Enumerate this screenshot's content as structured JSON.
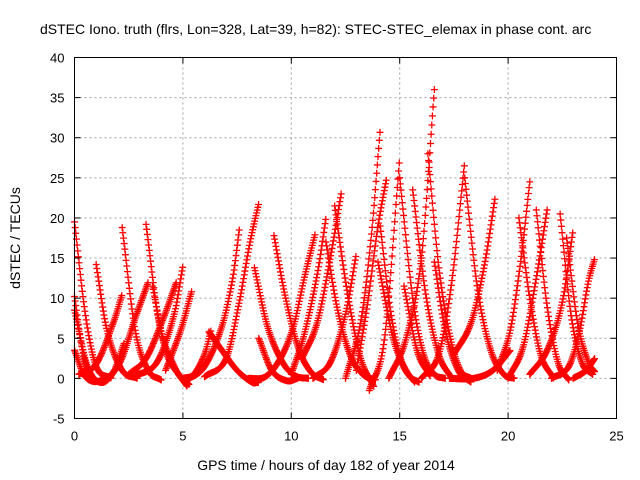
{
  "chart_data": {
    "type": "scatter",
    "title": "dSTEC Iono. truth (flrs, Lon=328, Lat=39, h=82): STEC-STEC_elemax in phase cont. arc",
    "xlabel": "GPS time / hours of day 182 of year 2014",
    "ylabel": "dSTEC  / TECUs",
    "xlim": [
      0,
      25
    ],
    "ylim": [
      -5,
      40
    ],
    "xticks": [
      0,
      5,
      10,
      15,
      20,
      25
    ],
    "yticks": [
      -5,
      0,
      5,
      10,
      15,
      20,
      25,
      30,
      35,
      40
    ],
    "grid": true,
    "marker": "plus",
    "color": "#ff0000",
    "arcs": [
      {
        "x": [
          0.0,
          0.5,
          1.0,
          1.7
        ],
        "y": [
          19.5,
          8.0,
          1.5,
          0.0
        ]
      },
      {
        "x": [
          0.0,
          0.4,
          0.8
        ],
        "y": [
          10.2,
          3.0,
          0.0
        ]
      },
      {
        "x": [
          0.0,
          0.6,
          1.2,
          1.8,
          2.3
        ],
        "y": [
          8.5,
          1.5,
          -0.5,
          0.8,
          4.5
        ]
      },
      {
        "x": [
          0.0,
          0.5,
          1.3,
          2.1,
          2.8,
          3.4
        ],
        "y": [
          3.5,
          0.2,
          -0.2,
          2.0,
          7.5,
          12.0
        ]
      },
      {
        "x": [
          0.2,
          1.0,
          1.8,
          2.2
        ],
        "y": [
          0.5,
          1.8,
          7.0,
          10.5
        ]
      },
      {
        "x": [
          1.0,
          1.5,
          2.2,
          2.9
        ],
        "y": [
          14.2,
          6.0,
          1.0,
          0.0
        ]
      },
      {
        "x": [
          2.2,
          2.8,
          3.4,
          4.0
        ],
        "y": [
          18.8,
          6.0,
          1.0,
          -0.2
        ]
      },
      {
        "x": [
          2.5,
          3.3,
          4.1,
          4.7
        ],
        "y": [
          0.5,
          2.5,
          7.5,
          12.0
        ]
      },
      {
        "x": [
          3.3,
          3.9,
          4.6,
          5.2
        ],
        "y": [
          19.2,
          7.0,
          1.5,
          -1.0
        ]
      },
      {
        "x": [
          3.6,
          4.2,
          4.8,
          5.3
        ],
        "y": [
          11.5,
          3.5,
          0.5,
          -0.8
        ]
      },
      {
        "x": [
          2.8,
          3.8,
          4.6,
          5.0
        ],
        "y": [
          0.3,
          2.0,
          8.0,
          14.0
        ]
      },
      {
        "x": [
          4.2,
          4.9,
          5.4
        ],
        "y": [
          1.0,
          6.0,
          10.8
        ]
      },
      {
        "x": [
          5.0,
          5.5,
          6.0,
          6.3
        ],
        "y": [
          0.0,
          0.5,
          3.0,
          6.0
        ]
      },
      {
        "x": [
          5.2,
          6.0,
          6.8,
          7.3,
          7.6
        ],
        "y": [
          -0.2,
          1.5,
          6.5,
          12.5,
          18.5
        ]
      },
      {
        "x": [
          6.2,
          6.8,
          7.5,
          8.2,
          8.5
        ],
        "y": [
          5.8,
          3.5,
          1.0,
          -0.5,
          -0.5
        ]
      },
      {
        "x": [
          6.0,
          7.0,
          7.6,
          8.1,
          8.5
        ],
        "y": [
          0.2,
          2.5,
          9.5,
          17.0,
          21.8
        ]
      },
      {
        "x": [
          8.3,
          8.9,
          9.6,
          10.2,
          10.8
        ],
        "y": [
          13.8,
          6.5,
          2.0,
          0.3,
          0.0
        ]
      },
      {
        "x": [
          8.5,
          9.1,
          9.8,
          10.3
        ],
        "y": [
          5.0,
          1.0,
          -0.3,
          0.0
        ]
      },
      {
        "x": [
          8.0,
          8.8,
          9.5,
          10.1,
          10.6,
          11.1
        ],
        "y": [
          0.0,
          0.2,
          2.5,
          6.5,
          12.5,
          18.0
        ]
      },
      {
        "x": [
          9.2,
          9.7,
          10.3,
          10.9,
          11.5
        ],
        "y": [
          17.8,
          10.5,
          4.0,
          0.8,
          -0.2
        ]
      },
      {
        "x": [
          10.0,
          10.6,
          11.2,
          11.6
        ],
        "y": [
          0.5,
          5.5,
          13.0,
          20.0
        ]
      },
      {
        "x": [
          10.5,
          11.2,
          11.8,
          12.3
        ],
        "y": [
          2.5,
          7.0,
          15.0,
          23.0
        ]
      },
      {
        "x": [
          11.6,
          12.1,
          12.7,
          13.3,
          13.9
        ],
        "y": [
          17.0,
          9.0,
          3.0,
          0.5,
          -0.2
        ]
      },
      {
        "x": [
          12.0,
          12.6,
          13.2,
          13.8
        ],
        "y": [
          21.5,
          10.5,
          2.5,
          -1.0
        ]
      },
      {
        "x": [
          11.0,
          11.8,
          12.5,
          13.0
        ],
        "y": [
          0.0,
          2.0,
          8.0,
          15.5
        ]
      },
      {
        "x": [
          12.5,
          13.2,
          13.7,
          14.1
        ],
        "y": [
          0.0,
          7.0,
          18.0,
          31.0
        ]
      },
      {
        "x": [
          13.0,
          13.5,
          14.0,
          14.4
        ],
        "y": [
          1.0,
          9.0,
          19.0,
          25.0
        ]
      },
      {
        "x": [
          14.1,
          14.6,
          15.1,
          15.7
        ],
        "y": [
          19.0,
          8.0,
          2.0,
          -0.5
        ]
      },
      {
        "x": [
          14.0,
          14.7,
          15.4,
          15.9
        ],
        "y": [
          14.5,
          5.0,
          0.5,
          -0.5
        ]
      },
      {
        "x": [
          13.6,
          14.3,
          15.0
        ],
        "y": [
          -1.5,
          5.0,
          27.5
        ]
      },
      {
        "x": [
          15.0,
          15.6,
          16.1,
          16.6,
          17.1
        ],
        "y": [
          25.0,
          10.0,
          3.0,
          0.5,
          0.0
        ]
      },
      {
        "x": [
          15.2,
          15.8,
          16.4
        ],
        "y": [
          11.5,
          3.5,
          0.3
        ]
      },
      {
        "x": [
          14.5,
          15.3,
          16.0,
          16.6
        ],
        "y": [
          0.0,
          5.0,
          15.0,
          36.0
        ]
      },
      {
        "x": [
          15.6,
          16.2,
          16.8,
          17.4
        ],
        "y": [
          23.5,
          10.5,
          3.0,
          0.0
        ]
      },
      {
        "x": [
          16.3,
          16.8,
          17.3,
          17.8,
          18.3
        ],
        "y": [
          28.0,
          14.0,
          5.5,
          1.0,
          0.0
        ]
      },
      {
        "x": [
          16.6,
          17.1,
          17.7,
          18.3
        ],
        "y": [
          14.5,
          6.0,
          1.0,
          -0.5
        ]
      },
      {
        "x": [
          16.0,
          16.8,
          17.4,
          18.0
        ],
        "y": [
          0.0,
          3.0,
          12.0,
          27.0
        ]
      },
      {
        "x": [
          17.5,
          18.3,
          18.9,
          19.4
        ],
        "y": [
          3.0,
          7.0,
          14.0,
          22.5
        ]
      },
      {
        "x": [
          18.0,
          18.6,
          19.2,
          19.8,
          20.3
        ],
        "y": [
          25.0,
          11.0,
          3.5,
          0.5,
          0.0
        ]
      },
      {
        "x": [
          17.3,
          18.4,
          19.3,
          20.1
        ],
        "y": [
          0.0,
          0.0,
          1.0,
          3.5
        ]
      },
      {
        "x": [
          19.5,
          20.1,
          20.6,
          21.0
        ],
        "y": [
          1.0,
          6.0,
          15.0,
          24.5
        ]
      },
      {
        "x": [
          20.5,
          21.0,
          21.5,
          22.1
        ],
        "y": [
          20.0,
          10.0,
          3.0,
          0.0
        ]
      },
      {
        "x": [
          20.0,
          20.7,
          21.3,
          21.8
        ],
        "y": [
          0.0,
          4.0,
          12.5,
          21.0
        ]
      },
      {
        "x": [
          21.3,
          21.8,
          22.3,
          22.8
        ],
        "y": [
          21.0,
          9.0,
          2.0,
          -0.2
        ]
      },
      {
        "x": [
          21.0,
          21.8,
          22.5,
          23.0
        ],
        "y": [
          0.5,
          3.5,
          9.5,
          18.5
        ]
      },
      {
        "x": [
          22.4,
          22.9,
          23.4,
          23.9
        ],
        "y": [
          20.5,
          8.0,
          2.0,
          0.5
        ]
      },
      {
        "x": [
          22.7,
          23.2,
          23.7,
          24.0
        ],
        "y": [
          17.5,
          7.0,
          2.0,
          0.8
        ]
      },
      {
        "x": [
          22.0,
          22.8,
          23.3,
          23.7,
          24.0
        ],
        "y": [
          0.0,
          1.5,
          6.0,
          12.0,
          15.0
        ]
      },
      {
        "x": [
          23.0,
          23.6,
          24.0
        ],
        "y": [
          0.0,
          1.0,
          2.5
        ]
      }
    ]
  }
}
